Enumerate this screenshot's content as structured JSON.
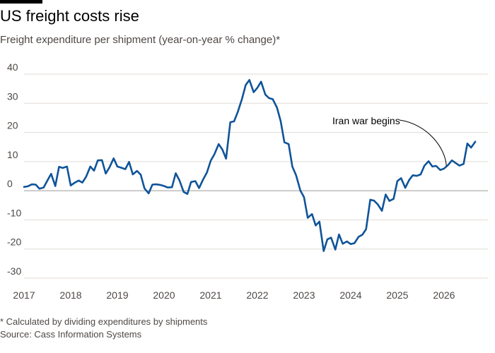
{
  "header": {
    "title": "US freight costs rise",
    "subtitle": "Freight expenditure per shipment (year-on-year % change)*"
  },
  "footer": {
    "footnote": "* Calculated by dividing expenditures by shipments",
    "source": "Source: Cass Information Systems"
  },
  "colors": {
    "line": "#0f5499",
    "grid": "#e0dbd6",
    "zero_line": "#9e9a96",
    "text": "#4d4845",
    "annotation": "#000000"
  },
  "chart_data": {
    "type": "line",
    "title": "US freight costs rise",
    "subtitle": "Freight expenditure per shipment (year-on-year % change)*",
    "xlabel": "",
    "ylabel": "",
    "ylim": [
      -30,
      40
    ],
    "xlim": [
      2017,
      2026.85
    ],
    "yticks": [
      40,
      30,
      20,
      10,
      0,
      -10,
      -20,
      -30
    ],
    "ytick_labels": [
      "40",
      "30",
      "20",
      "10",
      "0",
      "-10",
      "-20",
      "-30"
    ],
    "xticks": [
      2017,
      2018,
      2019,
      2020,
      2021,
      2022,
      2023,
      2024,
      2025,
      2026
    ],
    "xtick_labels": [
      "2017",
      "2018",
      "2019",
      "2020",
      "2021",
      "2022",
      "2023",
      "2024",
      "2025",
      "2026"
    ],
    "grid": "horizontal",
    "annotations": [
      {
        "text": "Iran war begins",
        "x": 2026.05,
        "y": 8.5
      }
    ],
    "series": [
      {
        "x": [
          2017.0,
          2017.08,
          2017.17,
          2017.25,
          2017.33,
          2017.42,
          2017.5,
          2017.58,
          2017.67,
          2017.75,
          2017.83,
          2017.92,
          2018.0,
          2018.08,
          2018.17,
          2018.25,
          2018.33,
          2018.42,
          2018.5,
          2018.58,
          2018.67,
          2018.75,
          2018.83,
          2018.92,
          2019.0,
          2019.08,
          2019.17,
          2019.25,
          2019.33,
          2019.42,
          2019.5,
          2019.58,
          2019.67,
          2019.75,
          2019.83,
          2019.92,
          2020.0,
          2020.08,
          2020.17,
          2020.25,
          2020.33,
          2020.42,
          2020.5,
          2020.58,
          2020.67,
          2020.75,
          2020.83,
          2020.92,
          2021.0,
          2021.08,
          2021.17,
          2021.25,
          2021.33,
          2021.42,
          2021.5,
          2021.58,
          2021.67,
          2021.75,
          2021.83,
          2021.92,
          2022.0,
          2022.08,
          2022.17,
          2022.25,
          2022.33,
          2022.42,
          2022.5,
          2022.58,
          2022.67,
          2022.75,
          2022.83,
          2022.92,
          2023.0,
          2023.08,
          2023.17,
          2023.25,
          2023.33,
          2023.42,
          2023.5,
          2023.58,
          2023.67,
          2023.75,
          2023.83,
          2023.92,
          2024.0,
          2024.08,
          2024.17,
          2024.25,
          2024.33,
          2024.42,
          2024.5,
          2024.58,
          2024.67,
          2024.75,
          2024.83,
          2024.92,
          2025.0,
          2025.08,
          2025.17,
          2025.25,
          2025.33,
          2025.42,
          2025.5,
          2025.58,
          2025.67,
          2025.75,
          2025.83,
          2025.92,
          2026.0,
          2026.08,
          2026.17,
          2026.25,
          2026.33,
          2026.42,
          2026.5,
          2026.58,
          2026.67
        ],
        "y": [
          1.3,
          1.5,
          2.2,
          2.1,
          0.7,
          1.1,
          3.5,
          5.8,
          1.6,
          8.2,
          7.8,
          8.3,
          1.8,
          2.7,
          3.5,
          2.8,
          4.8,
          8.3,
          6.9,
          10.4,
          10.5,
          5.9,
          8.0,
          11.1,
          8.3,
          7.9,
          7.4,
          9.9,
          5.6,
          6.8,
          5.5,
          0.8,
          -0.9,
          2.1,
          2.2,
          2.0,
          1.6,
          1.1,
          1.2,
          6.0,
          3.6,
          -0.4,
          -1.1,
          3.0,
          3.3,
          0.9,
          3.6,
          6.3,
          10.3,
          12.5,
          16.0,
          14.1,
          11.0,
          23.5,
          23.8,
          27.0,
          31.5,
          36.3,
          38.0,
          33.8,
          35.3,
          37.4,
          33.0,
          31.8,
          31.4,
          28.5,
          23.9,
          16.6,
          16.0,
          8.3,
          5.3,
          0.1,
          -2.2,
          -9.3,
          -8.0,
          -11.9,
          -10.6,
          -20.7,
          -16.7,
          -16.1,
          -20.2,
          -15.0,
          -18.2,
          -17.4,
          -18.3,
          -18.0,
          -15.8,
          -15.1,
          -13.2,
          -3.1,
          -3.4,
          -4.7,
          -6.9,
          -1.3,
          -3.5,
          -2.8,
          3.3,
          4.3,
          1.0,
          3.6,
          5.3,
          5.1,
          5.6,
          8.6,
          10.1,
          8.3,
          8.5,
          7.1,
          7.6,
          8.7,
          10.4,
          9.5,
          8.6,
          9.2,
          16.2,
          14.8,
          16.8
        ]
      }
    ]
  }
}
